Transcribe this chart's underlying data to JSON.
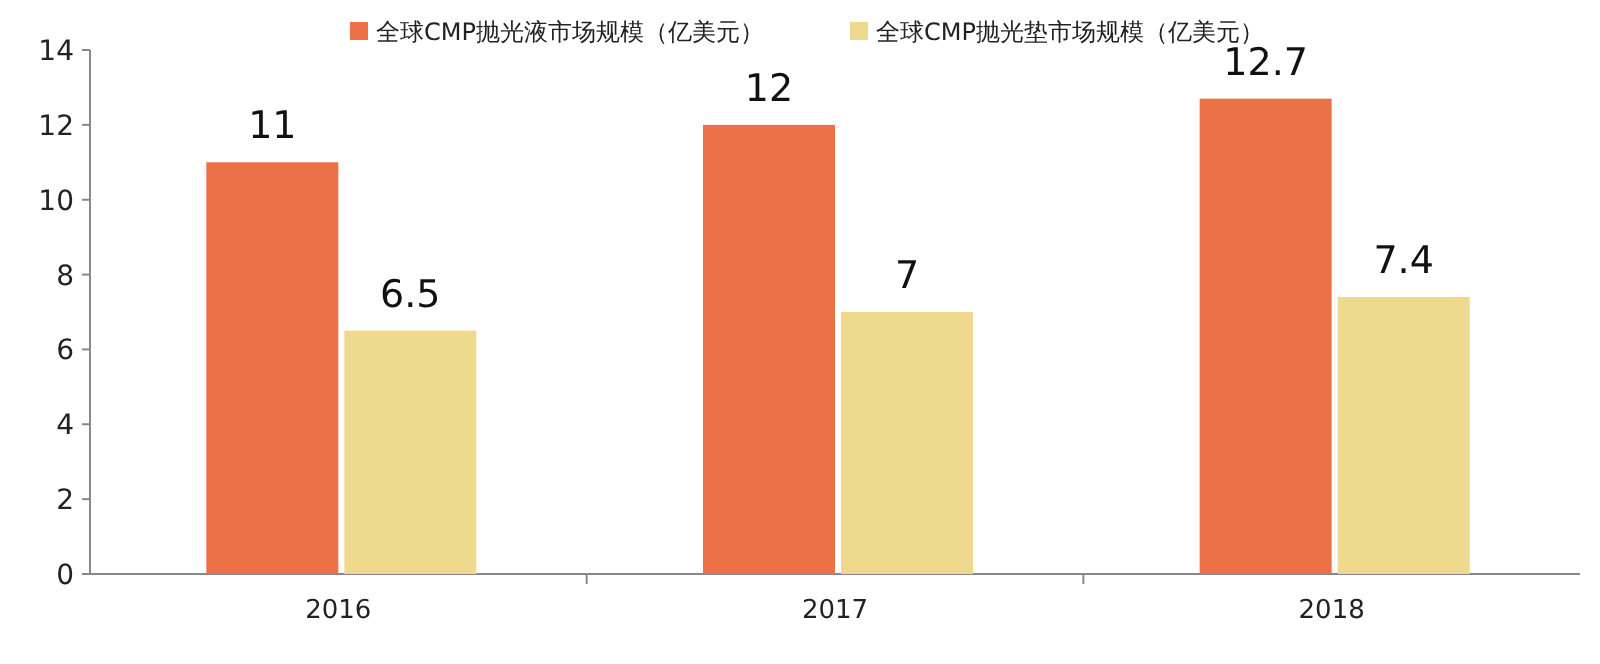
{
  "chart_data": {
    "type": "bar",
    "categories": [
      "2016",
      "2017",
      "2018"
    ],
    "series": [
      {
        "name": "全球CMP抛光液市场规模（亿美元）",
        "color": "#ec7149",
        "values": [
          11,
          12,
          12.7
        ]
      },
      {
        "name": "全球CMP抛光垫市场规模（亿美元）",
        "color": "#efd98e",
        "values": [
          6.5,
          7,
          7.4
        ]
      }
    ],
    "ylim": [
      0,
      14
    ],
    "yticks": [
      0,
      2,
      4,
      6,
      8,
      10,
      12,
      14
    ],
    "data_labels": true,
    "legend": "top",
    "grid": false
  }
}
